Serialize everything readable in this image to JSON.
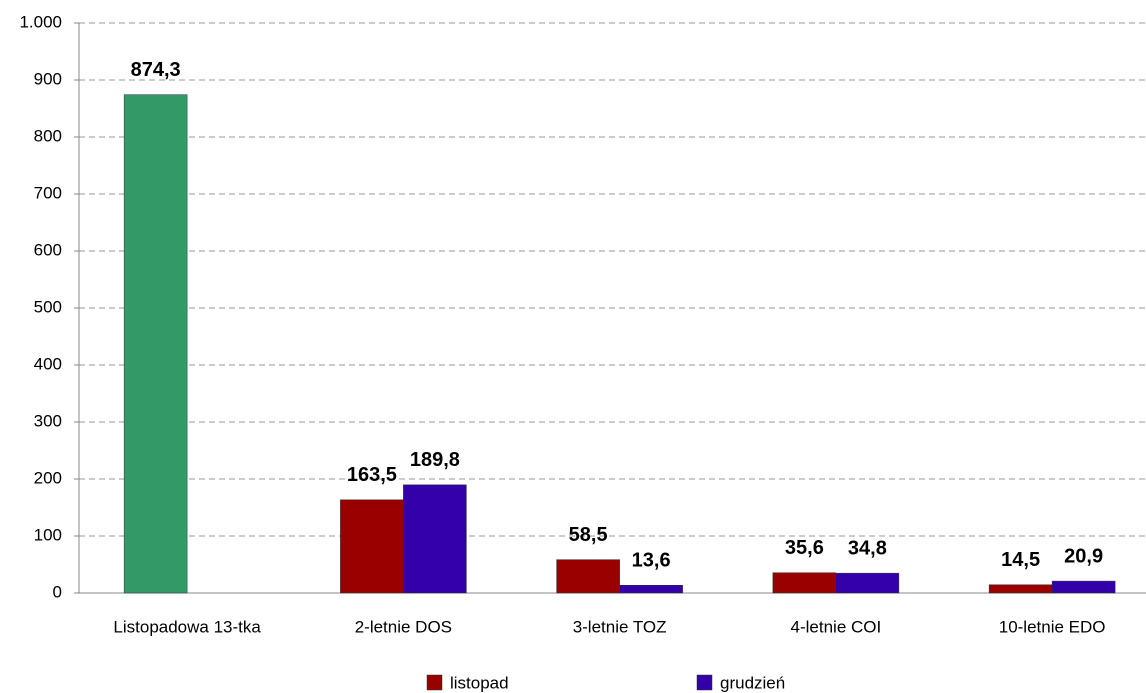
{
  "chart_data": {
    "type": "bar",
    "categories": [
      "Listopadowa 13-tka",
      "2-letnie DOS",
      "3-letnie TOZ",
      "4-letnie COI",
      "10-letnie EDO"
    ],
    "series": [
      {
        "name": "listopad",
        "color": "#990000",
        "colors": [
          "#339966",
          "#990000",
          "#990000",
          "#990000",
          "#990000"
        ],
        "values": [
          874.3,
          163.5,
          58.5,
          35.6,
          14.5
        ],
        "value_labels": [
          "874,3",
          "163,5",
          "58,5",
          "35,6",
          "14,5"
        ]
      },
      {
        "name": "grudzień",
        "color": "#3300aa",
        "values": [
          null,
          189.8,
          13.6,
          34.8,
          20.9
        ],
        "value_labels": [
          null,
          "189,8",
          "13,6",
          "34,8",
          "20,9"
        ]
      }
    ],
    "ylim": [
      0,
      1000
    ],
    "yticks": [
      0,
      100,
      200,
      300,
      400,
      500,
      600,
      700,
      800,
      900,
      {
        "value": 1000,
        "label": "1.000"
      }
    ],
    "grid": true
  }
}
